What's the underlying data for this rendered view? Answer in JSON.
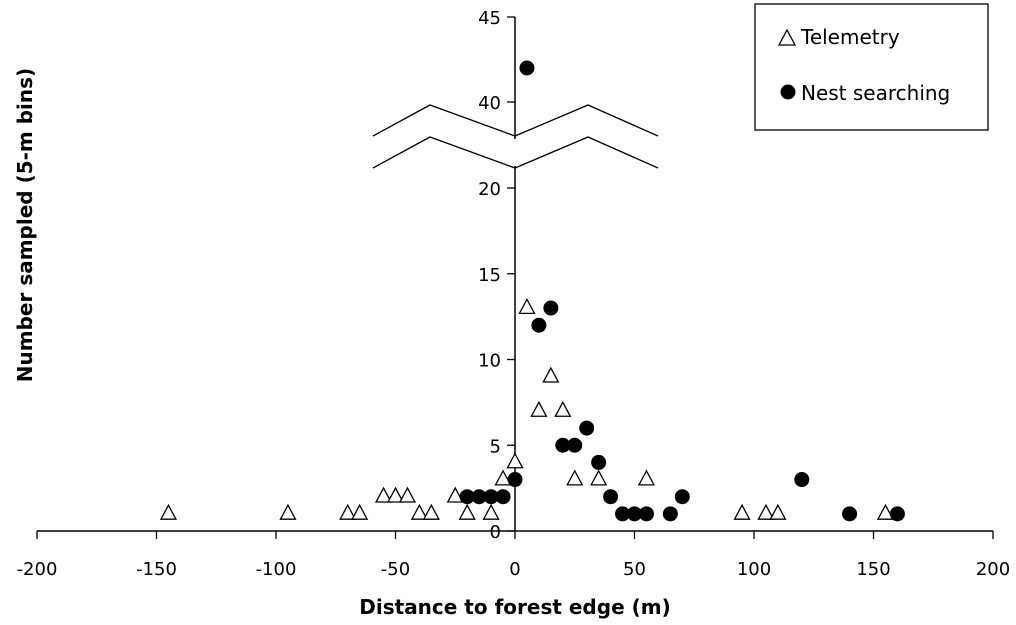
{
  "chart_data": {
    "type": "scatter",
    "xlabel": "Distance to forest edge (m)",
    "ylabel": "Number sampled (5-m bins)",
    "xlim": [
      -200,
      200
    ],
    "xticks": [
      -200,
      -150,
      -100,
      -50,
      0,
      50,
      100,
      150,
      200
    ],
    "ylim_lower": [
      0,
      22
    ],
    "ylim_upper": [
      37,
      45
    ],
    "yticks_lower": [
      0,
      5,
      10,
      15,
      20
    ],
    "yticks_upper": [
      40,
      45
    ],
    "axis_break": "y between 22 and 37",
    "legend": {
      "placement": "top-right",
      "entries": [
        "Telemetry",
        "Nest searching"
      ]
    },
    "series": [
      {
        "name": "Telemetry",
        "marker": "open-triangle",
        "points": [
          [
            -145,
            1
          ],
          [
            -95,
            1
          ],
          [
            -70,
            1
          ],
          [
            -65,
            1
          ],
          [
            -55,
            2
          ],
          [
            -50,
            2
          ],
          [
            -45,
            2
          ],
          [
            -40,
            1
          ],
          [
            -35,
            1
          ],
          [
            -25,
            2
          ],
          [
            -20,
            1
          ],
          [
            -10,
            1
          ],
          [
            -5,
            3
          ],
          [
            0,
            4
          ],
          [
            5,
            13
          ],
          [
            10,
            7
          ],
          [
            15,
            9
          ],
          [
            20,
            7
          ],
          [
            25,
            3
          ],
          [
            35,
            3
          ],
          [
            55,
            3
          ],
          [
            95,
            1
          ],
          [
            105,
            1
          ],
          [
            110,
            1
          ],
          [
            155,
            1
          ]
        ]
      },
      {
        "name": "Nest searching",
        "marker": "filled-circle",
        "points": [
          [
            -20,
            2
          ],
          [
            -15,
            2
          ],
          [
            -10,
            2
          ],
          [
            -5,
            2
          ],
          [
            0,
            3
          ],
          [
            5,
            42
          ],
          [
            10,
            12
          ],
          [
            15,
            13
          ],
          [
            20,
            5
          ],
          [
            25,
            5
          ],
          [
            30,
            6
          ],
          [
            35,
            4
          ],
          [
            40,
            2
          ],
          [
            45,
            1
          ],
          [
            50,
            1
          ],
          [
            55,
            1
          ],
          [
            65,
            1
          ],
          [
            70,
            2
          ],
          [
            120,
            3
          ],
          [
            140,
            1
          ],
          [
            160,
            1
          ]
        ]
      }
    ]
  }
}
